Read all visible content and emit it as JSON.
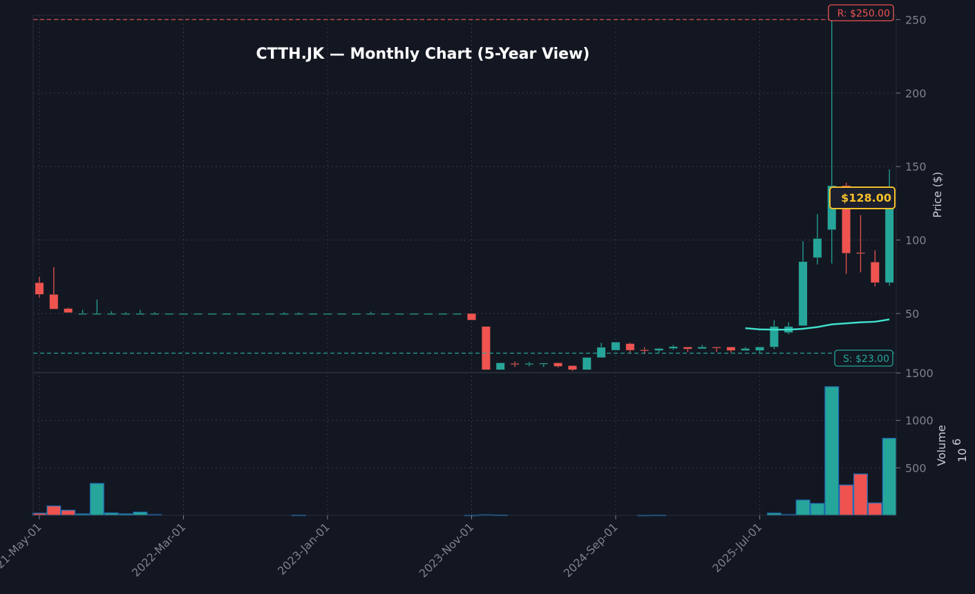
{
  "chart_data": [
    {
      "type": "candlestick",
      "title": "CTTH.JK — Monthly Chart (5-Year View)",
      "ylabel": "Price ($)",
      "ylim": [
        10,
        253
      ],
      "yticks": [
        50,
        100,
        150,
        200,
        250
      ],
      "xticks": [
        "2021-May-01",
        "2022-Mar-01",
        "2023-Jan-01",
        "2023-Nov-01",
        "2024-Sep-01",
        "2025-Jul-01"
      ],
      "xtick_dates": [
        "2021-05",
        "2022-03",
        "2023-01",
        "2023-11",
        "2024-09",
        "2025-07"
      ],
      "grid": true,
      "colors": {
        "up": "#26a69a",
        "down": "#ef5350",
        "ma": "#3fe0cc",
        "support": "#26a69a",
        "resistance": "#ef5350",
        "current": "#f5c02a"
      },
      "columns": [
        "date",
        "open",
        "high",
        "low",
        "close"
      ],
      "candles": [
        [
          "2021-05",
          71,
          75,
          61,
          63
        ],
        [
          "2021-06",
          63,
          81.5,
          53,
          53
        ],
        [
          "2021-07",
          53.4,
          54,
          50.6,
          50.6
        ],
        [
          "2021-08",
          50,
          52.5,
          50,
          50
        ],
        [
          "2021-09",
          50,
          59.5,
          50,
          50
        ],
        [
          "2021-10",
          50,
          51.5,
          50,
          50
        ],
        [
          "2021-11",
          50,
          51,
          50,
          50
        ],
        [
          "2021-12",
          50,
          52.5,
          50,
          50
        ],
        [
          "2022-01",
          50,
          51,
          50,
          50
        ],
        [
          "2022-02",
          50,
          50,
          50,
          50
        ],
        [
          "2022-03",
          50,
          50,
          50,
          50
        ],
        [
          "2022-04",
          50,
          50,
          50,
          50
        ],
        [
          "2022-05",
          50,
          50,
          50,
          50
        ],
        [
          "2022-06",
          50,
          50,
          50,
          50
        ],
        [
          "2022-07",
          50,
          50,
          50,
          50
        ],
        [
          "2022-08",
          50,
          50,
          50,
          50
        ],
        [
          "2022-09",
          50,
          50,
          50,
          50
        ],
        [
          "2022-10",
          50,
          50.8,
          50,
          50
        ],
        [
          "2022-11",
          50,
          50.8,
          50,
          50
        ],
        [
          "2022-12",
          50,
          50,
          50,
          50
        ],
        [
          "2023-01",
          50,
          50,
          50,
          50
        ],
        [
          "2023-02",
          50,
          50,
          50,
          50
        ],
        [
          "2023-03",
          50,
          50,
          50,
          50
        ],
        [
          "2023-04",
          50,
          51.2,
          50,
          50
        ],
        [
          "2023-05",
          50,
          50,
          50,
          50
        ],
        [
          "2023-06",
          50,
          50,
          50,
          50
        ],
        [
          "2023-07",
          50,
          50,
          50,
          50
        ],
        [
          "2023-08",
          50,
          50,
          50,
          50
        ],
        [
          "2023-09",
          50,
          50,
          50,
          50
        ],
        [
          "2023-10",
          50,
          50,
          50,
          50
        ],
        [
          "2023-11",
          50,
          50,
          45.5,
          45.5
        ],
        [
          "2023-12",
          41.2,
          41.2,
          11.7,
          11.7
        ],
        [
          "2024-01",
          11.7,
          16.4,
          11.7,
          16.4
        ],
        [
          "2024-02",
          16,
          17.3,
          13.6,
          15.5
        ],
        [
          "2024-03",
          15.5,
          17,
          14,
          16
        ],
        [
          "2024-04",
          15.5,
          16.2,
          13.6,
          16.2
        ],
        [
          "2024-05",
          16.4,
          16.4,
          13.2,
          14
        ],
        [
          "2024-06",
          14.5,
          14.5,
          10.8,
          11.7
        ],
        [
          "2024-07",
          11.7,
          20.1,
          11.7,
          20.1
        ],
        [
          "2024-08",
          20,
          30,
          20,
          27
        ],
        [
          "2024-09",
          25,
          30.5,
          25,
          30.5
        ],
        [
          "2024-10",
          29.5,
          30.2,
          23.4,
          25
        ],
        [
          "2024-11",
          25.3,
          27,
          22.5,
          24.8
        ],
        [
          "2024-12",
          24.8,
          26.2,
          23.4,
          26.2
        ],
        [
          "2025-01",
          26.2,
          28.6,
          25.3,
          27.5
        ],
        [
          "2025-02",
          27.2,
          27.2,
          23.9,
          25.8
        ],
        [
          "2025-03",
          26,
          28.6,
          26,
          27.2
        ],
        [
          "2025-04",
          27.2,
          27.2,
          23.9,
          26.8
        ],
        [
          "2025-05",
          27.2,
          27.2,
          23.4,
          24.8
        ],
        [
          "2025-06",
          24.8,
          27.2,
          24.8,
          26.2
        ],
        [
          "2025-07",
          24.8,
          27.2,
          23.4,
          27.2
        ],
        [
          "2025-08",
          27.2,
          45.5,
          25.8,
          41.2
        ],
        [
          "2025-09",
          37,
          44,
          36,
          41.2
        ],
        [
          "2025-10",
          41.7,
          99.3,
          41.7,
          85.3
        ],
        [
          "2025-11",
          88,
          117.6,
          83.4,
          101
        ],
        [
          "2025-12",
          107,
          252,
          84,
          137
        ],
        [
          "2026-01",
          137,
          139,
          77,
          91
        ],
        [
          "2026-02",
          91.5,
          117,
          78,
          91
        ],
        [
          "2026-03",
          85,
          93,
          68.4,
          71
        ],
        [
          "2026-04",
          71,
          148,
          69,
          128
        ]
      ],
      "moving_average": [
        [
          "2025-06",
          40
        ],
        [
          "2025-07",
          39.2
        ],
        [
          "2025-08",
          39
        ],
        [
          "2025-09",
          39
        ],
        [
          "2025-10",
          39.6
        ],
        [
          "2025-11",
          40.8
        ],
        [
          "2025-12",
          42.6
        ],
        [
          "2026-01",
          43.3
        ],
        [
          "2026-02",
          44
        ],
        [
          "2026-03",
          44.4
        ],
        [
          "2026-04",
          46
        ]
      ],
      "resistance": {
        "value": 250,
        "label": "R: $250.00"
      },
      "support": {
        "value": 23,
        "label": "S: $23.00"
      },
      "current_price": {
        "value": 128,
        "label": "$128.00"
      }
    },
    {
      "type": "bar",
      "ylabel": "Volume",
      "yscale_label": "10",
      "yscale_exp": "6",
      "ylim": [
        0,
        1500
      ],
      "yticks": [
        500,
        1000,
        1500
      ],
      "grid": true,
      "values": [
        22,
        98,
        53,
        14,
        335,
        24,
        14,
        33,
        7,
        0,
        0,
        0,
        0,
        0,
        0,
        0,
        0,
        0,
        2,
        0,
        0,
        0,
        0,
        0,
        0,
        0,
        0,
        0,
        0,
        0,
        1,
        5,
        3,
        0,
        0,
        0,
        0,
        0,
        0,
        0,
        0,
        0,
        1,
        2,
        0,
        0,
        0,
        0,
        0,
        0,
        0,
        22,
        7,
        160,
        124,
        1355,
        319,
        435,
        130,
        811
      ]
    }
  ]
}
